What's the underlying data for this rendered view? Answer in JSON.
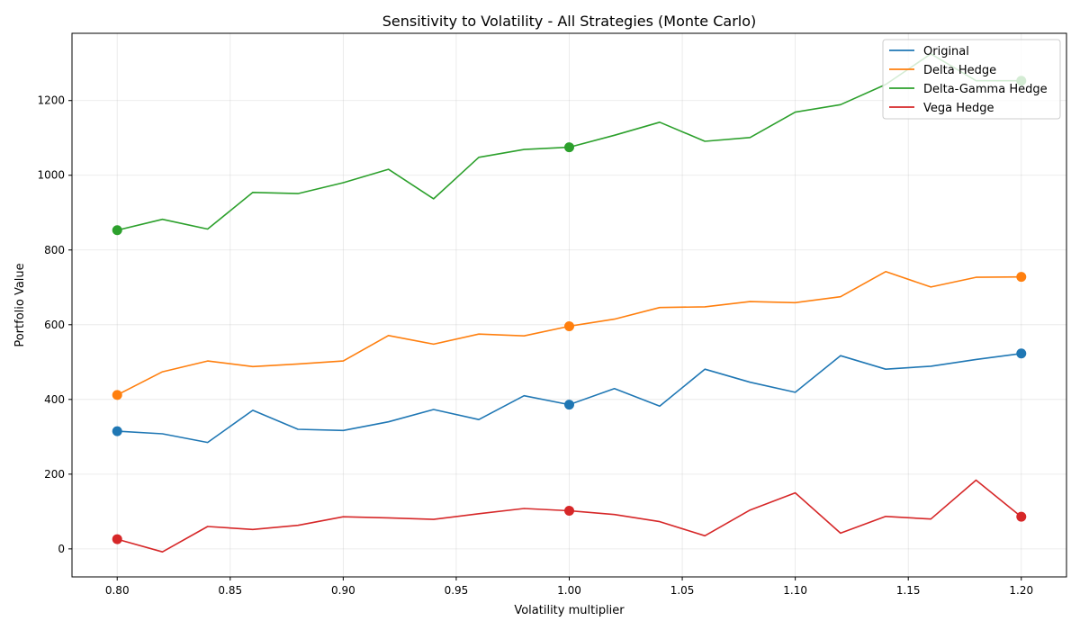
{
  "chart_data": {
    "type": "line",
    "title": "Sensitivity to Volatility - All Strategies (Monte Carlo)",
    "xlabel": "Volatility multiplier",
    "ylabel": "Portfolio Value",
    "xlim": [
      0.78,
      1.22
    ],
    "ylim": [
      -75,
      1380
    ],
    "xticks": [
      0.8,
      0.85,
      0.9,
      0.95,
      1.0,
      1.05,
      1.1,
      1.15,
      1.2
    ],
    "xtick_labels": [
      "0.80",
      "0.85",
      "0.90",
      "0.95",
      "1.00",
      "1.05",
      "1.10",
      "1.15",
      "1.20"
    ],
    "yticks": [
      0,
      200,
      400,
      600,
      800,
      1000,
      1200
    ],
    "ytick_labels": [
      "0",
      "200",
      "400",
      "600",
      "800",
      "1000",
      "1200"
    ],
    "grid": true,
    "legend_position": "top-right",
    "x": [
      0.8,
      0.82,
      0.84,
      0.86,
      0.88,
      0.9,
      0.92,
      0.94,
      0.96,
      0.98,
      1.0,
      1.02,
      1.04,
      1.06,
      1.08,
      1.1,
      1.12,
      1.14,
      1.16,
      1.18,
      1.2
    ],
    "markers_at": [
      0.8,
      1.0,
      1.2
    ],
    "series": [
      {
        "name": "Original",
        "color": "#1f77b4",
        "values": [
          315,
          308,
          285,
          371,
          320,
          317,
          340,
          373,
          346,
          410,
          386,
          429,
          382,
          481,
          446,
          419,
          517,
          481,
          489,
          507,
          523
        ]
      },
      {
        "name": "Delta Hedge",
        "color": "#ff7f0e",
        "values": [
          412,
          474,
          503,
          488,
          495,
          503,
          571,
          548,
          575,
          570,
          596,
          615,
          646,
          648,
          662,
          659,
          675,
          742,
          701,
          727,
          728
        ]
      },
      {
        "name": "Delta-Gamma Hedge",
        "color": "#2ca02c",
        "values": [
          853,
          882,
          856,
          954,
          951,
          980,
          1016,
          937,
          1048,
          1069,
          1075,
          1107,
          1142,
          1091,
          1101,
          1169,
          1189,
          1243,
          1325,
          1253,
          1253
        ]
      },
      {
        "name": "Vega Hedge",
        "color": "#d62728",
        "values": [
          26,
          -8,
          60,
          52,
          63,
          86,
          83,
          79,
          94,
          108,
          102,
          92,
          73,
          35,
          104,
          150,
          42,
          87,
          80,
          184,
          86
        ]
      }
    ]
  }
}
